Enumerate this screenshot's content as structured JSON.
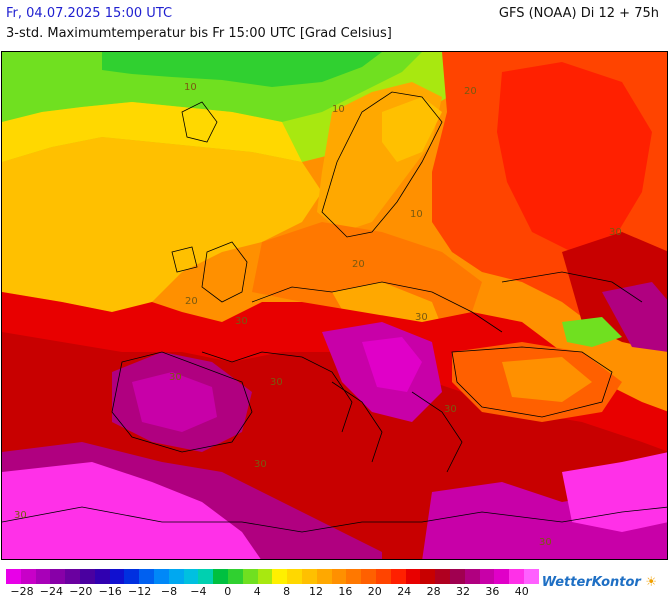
{
  "header": {
    "date": "Fr, 04.07.2025 15:00 UTC",
    "model": "GFS (NOAA) Di 12 + 75h",
    "subtitle": "3-std. Maximumtemperatur bis Fr 15:00 UTC [Grad Celsius]"
  },
  "map": {
    "contour_labels": [
      "10",
      "20",
      "30"
    ]
  },
  "legend": {
    "colors": [
      "#e800e8",
      "#c800c8",
      "#a800b8",
      "#8800a8",
      "#6a00a0",
      "#4a00a0",
      "#3000b0",
      "#1010d0",
      "#0030e0",
      "#0060f0",
      "#0088f8",
      "#00a8f0",
      "#00c0e0",
      "#00d0b0",
      "#00c040",
      "#30d030",
      "#70e020",
      "#a8e810",
      "#fff000",
      "#ffd800",
      "#ffc000",
      "#ffa800",
      "#ff9000",
      "#ff7800",
      "#ff6000",
      "#ff4400",
      "#ff2000",
      "#e80000",
      "#c80000",
      "#b00020",
      "#a00050",
      "#b00080",
      "#c800a8",
      "#e000c8",
      "#ff30e8",
      "#ff60ff"
    ],
    "ticks": [
      "−28",
      "−24",
      "−20",
      "−16",
      "−12",
      "−8",
      "−4",
      "0",
      "4",
      "8",
      "12",
      "16",
      "20",
      "24",
      "28",
      "32",
      "36",
      "40"
    ]
  },
  "brand": {
    "logo_text": "WetterKontor"
  }
}
